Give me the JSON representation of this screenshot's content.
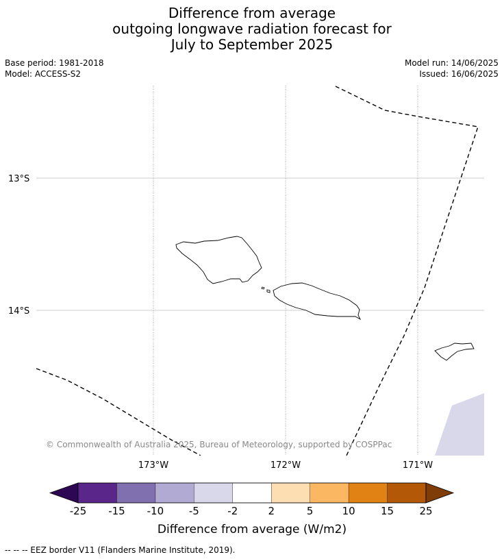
{
  "title_lines": [
    "Difference from average",
    "outgoing longwave radiation forecast for",
    "July to September 2025"
  ],
  "base_period": "Base period: 1981-2018",
  "model": "Model: ACCESS-S2",
  "model_run": "Model run: 14/06/2025",
  "issued": "Issued: 16/06/2025",
  "map": {
    "lat_labels": [
      "13°S",
      "14°S"
    ],
    "lon_labels": [
      "173°W",
      "172°W",
      "171°W"
    ],
    "copyright": "© Commonwealth of Australia 2025, Bureau of Meteorology, supported by COSPPac",
    "anomaly_fill_color": "#d8d8ea",
    "coastline_color": "#000000",
    "eez_style": "dashed"
  },
  "colorbar": {
    "label": "Difference from average (W/m2)",
    "tick_labels": [
      "-25",
      "-15",
      "-10",
      "-5",
      "-2",
      "2",
      "5",
      "10",
      "15",
      "25"
    ],
    "colors": [
      "#5a2689",
      "#8070b0",
      "#b1aad2",
      "#d8d8ea",
      "#ffffff",
      "#fddeb2",
      "#fcb762",
      "#e08214",
      "#b35806"
    ],
    "extend_low_color": "#2e0754",
    "extend_high_color": "#7f3b08"
  },
  "footer": "--  --  -- EEZ border V11 (Flanders Marine Institute, 2019)."
}
